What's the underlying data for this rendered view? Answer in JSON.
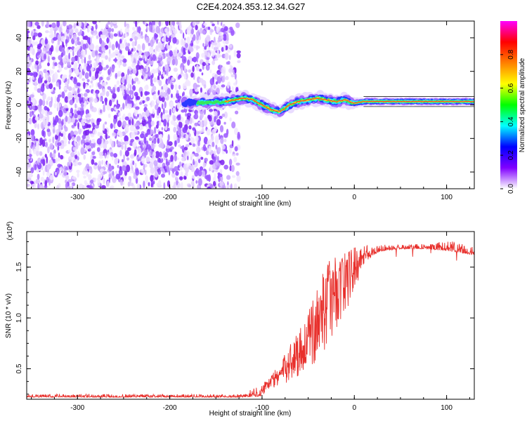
{
  "title": "C2E4.2024.353.12.34.G27",
  "chart_data": [
    {
      "type": "heatmap",
      "xlabel": "Height of straight line (km)",
      "ylabel": "Frequency (Hz)",
      "xlim": [
        -355,
        130
      ],
      "ylim": [
        -50,
        50
      ],
      "xticks": [
        -300,
        -200,
        -100,
        0,
        100
      ],
      "yticks": [
        -40,
        -20,
        0,
        20,
        40
      ],
      "noise_region_x": [
        -355,
        -125
      ],
      "signal_track": {
        "x": [
          -185,
          -175,
          -140,
          -130,
          -120,
          -110,
          -100,
          -90,
          -80,
          -70,
          -60,
          -50,
          -40,
          -30,
          -20,
          -10,
          0,
          10,
          20,
          40,
          60,
          80,
          100,
          130
        ],
        "frequency": [
          1.5,
          1,
          2,
          3,
          4,
          3,
          0,
          -3,
          -4,
          0,
          2,
          3,
          4,
          3,
          2,
          3,
          1,
          2,
          2,
          2,
          2,
          2,
          2,
          2
        ]
      },
      "colorbar": {
        "label": "Normalized spectral amplitude",
        "range": [
          0,
          1
        ],
        "ticks": [
          0.0,
          0.2,
          0.4,
          0.6,
          0.8
        ],
        "colormap": [
          "#ffffff",
          "#8000ff",
          "#0000ff",
          "#00ffff",
          "#00ff00",
          "#ffff00",
          "#ff8000",
          "#ff0000",
          "#ff00ff"
        ]
      }
    },
    {
      "type": "line",
      "xlabel": "Height of straight line (km)",
      "ylabel": "SNR (10 * v/v)",
      "y_multiplier_base": "(x10",
      "y_multiplier_exp": "4",
      "y_multiplier_close": ")",
      "xlim": [
        -355,
        130
      ],
      "ylim": [
        0.2,
        1.85
      ],
      "xticks": [
        -300,
        -200,
        -100,
        0,
        100
      ],
      "yticks": [
        0.5,
        1.0,
        1.5
      ],
      "color": "#e8302c",
      "envelope": {
        "x": [
          -355,
          -120,
          -102,
          -95,
          -80,
          -70,
          -60,
          -50,
          -40,
          -30,
          -20,
          -10,
          0,
          10,
          20,
          30,
          50,
          80,
          100,
          130
        ],
        "low": [
          0.22,
          0.22,
          0.23,
          0.27,
          0.32,
          0.36,
          0.4,
          0.47,
          0.55,
          0.72,
          0.85,
          1.0,
          1.25,
          1.52,
          1.62,
          1.66,
          1.68,
          1.68,
          1.66,
          1.62
        ],
        "high": [
          0.25,
          0.25,
          0.35,
          0.4,
          0.55,
          0.75,
          0.9,
          1.05,
          1.3,
          1.55,
          1.62,
          1.67,
          1.7,
          1.71,
          1.72,
          1.72,
          1.72,
          1.73,
          1.77,
          1.7
        ]
      }
    }
  ]
}
